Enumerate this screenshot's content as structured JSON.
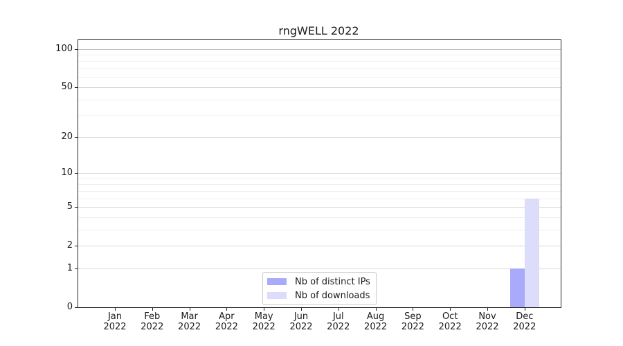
{
  "chart_data": {
    "type": "bar",
    "title": "rngWELL 2022",
    "months": [
      "Jan",
      "Feb",
      "Mar",
      "Apr",
      "May",
      "Jun",
      "Jul",
      "Aug",
      "Sep",
      "Oct",
      "Nov",
      "Dec"
    ],
    "year": "2022",
    "series": [
      {
        "name": "Nb of distinct IPs",
        "color": "#aaaafb",
        "values": [
          0,
          0,
          0,
          0,
          0,
          0,
          0,
          0,
          0,
          0,
          0,
          1
        ]
      },
      {
        "name": "Nb of downloads",
        "color": "#dcdcfb",
        "values": [
          0,
          0,
          0,
          0,
          0,
          0,
          0,
          0,
          0,
          0,
          0,
          6
        ]
      }
    ],
    "yscale": "log(1+x)",
    "ylim": [
      0,
      117
    ],
    "yticks_major": [
      0,
      1,
      2,
      5,
      10,
      20,
      50,
      100
    ],
    "yticks_minor": [
      3,
      4,
      6,
      7,
      8,
      9,
      30,
      40,
      60,
      70,
      80,
      90
    ],
    "grid": true,
    "legend_position": "lower center",
    "colors": {
      "grid_major": "#d9d9d9",
      "grid_minor": "#eeeeee",
      "grid_top": "#c0c0c0",
      "spine": "#222222",
      "text": "#1a1a1a",
      "background": "#ffffff"
    }
  }
}
